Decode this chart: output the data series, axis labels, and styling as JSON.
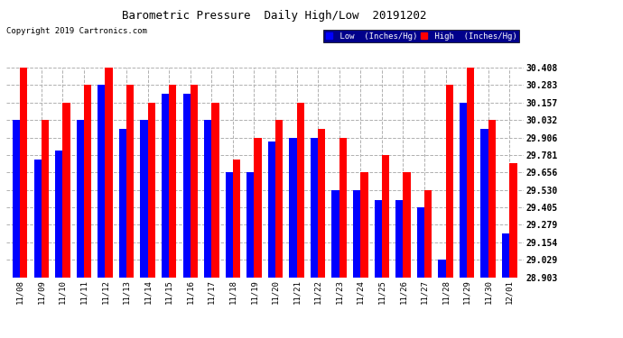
{
  "title": "Barometric Pressure  Daily High/Low  20191202",
  "copyright": "Copyright 2019 Cartronics.com",
  "dates": [
    "11/08",
    "11/09",
    "11/10",
    "11/11",
    "11/12",
    "11/13",
    "11/14",
    "11/15",
    "11/16",
    "11/17",
    "11/18",
    "11/19",
    "11/20",
    "11/21",
    "11/22",
    "11/23",
    "11/24",
    "11/25",
    "11/26",
    "11/27",
    "11/28",
    "11/29",
    "11/30",
    "12/01"
  ],
  "low": [
    30.032,
    29.75,
    29.81,
    30.032,
    30.283,
    29.97,
    30.032,
    30.22,
    30.22,
    30.032,
    29.656,
    29.656,
    29.88,
    29.906,
    29.906,
    29.53,
    29.53,
    29.46,
    29.46,
    29.405,
    29.029,
    30.157,
    29.97,
    29.22
  ],
  "high": [
    30.408,
    30.032,
    30.157,
    30.283,
    30.408,
    30.283,
    30.157,
    30.283,
    30.283,
    30.157,
    29.75,
    29.906,
    30.032,
    30.157,
    29.97,
    29.906,
    29.656,
    29.781,
    29.656,
    29.53,
    30.283,
    30.408,
    30.032,
    29.72
  ],
  "low_color": "#0000ff",
  "high_color": "#ff0000",
  "bg_color": "#ffffff",
  "grid_color": "#b0b0b0",
  "legend_bg": "#00008b",
  "ymin": 28.903,
  "ymax": 30.408,
  "yticks": [
    28.903,
    29.029,
    29.154,
    29.279,
    29.405,
    29.53,
    29.656,
    29.781,
    29.906,
    30.032,
    30.157,
    30.283,
    30.408
  ]
}
